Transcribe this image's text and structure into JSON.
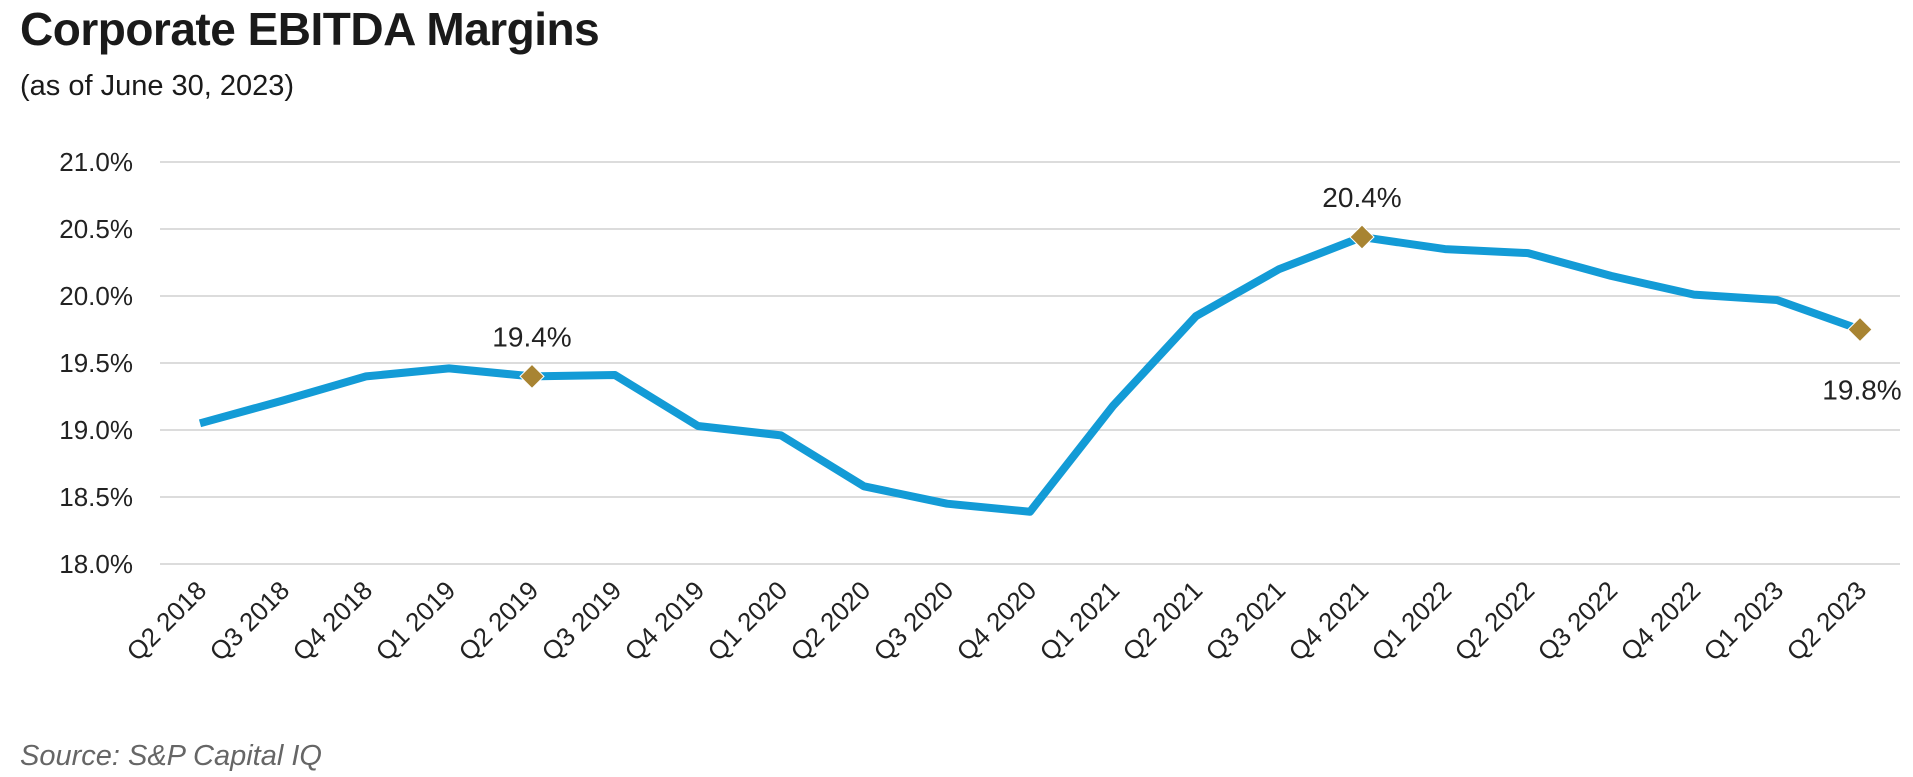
{
  "chart_data": {
    "type": "line",
    "title": "Corporate EBITDA Margins",
    "subtitle": "(as of June 30, 2023)",
    "source": "Source: S&P Capital IQ",
    "xlabel": "",
    "ylabel": "",
    "ylim": [
      18.0,
      21.0
    ],
    "yticks": [
      {
        "value": 18.0,
        "label": "18.0%"
      },
      {
        "value": 18.5,
        "label": "18.5%"
      },
      {
        "value": 19.0,
        "label": "19.0%"
      },
      {
        "value": 19.5,
        "label": "19.5%"
      },
      {
        "value": 20.0,
        "label": "20.0%"
      },
      {
        "value": 20.5,
        "label": "20.5%"
      },
      {
        "value": 21.0,
        "label": "21.0%"
      }
    ],
    "grid": true,
    "legend": "none",
    "categories": [
      "Q2 2018",
      "Q3 2018",
      "Q4 2018",
      "Q1 2019",
      "Q2 2019",
      "Q3 2019",
      "Q4 2019",
      "Q1 2020",
      "Q2 2020",
      "Q3 2020",
      "Q4 2020",
      "Q1 2021",
      "Q2 2021",
      "Q3 2021",
      "Q4 2021",
      "Q1 2022",
      "Q2 2022",
      "Q3 2022",
      "Q4 2022",
      "Q1 2023",
      "Q2 2023"
    ],
    "series": [
      {
        "values": [
          19.05,
          19.22,
          19.4,
          19.46,
          19.4,
          19.41,
          19.03,
          18.96,
          18.58,
          18.45,
          18.39,
          19.18,
          19.85,
          20.2,
          20.44,
          20.35,
          20.32,
          20.15,
          20.01,
          19.97,
          19.75
        ],
        "color": "#139BD6"
      }
    ],
    "markers": [
      {
        "index": 4,
        "label": "19.4%",
        "position": "above"
      },
      {
        "index": 14,
        "label": "20.4%",
        "position": "above"
      },
      {
        "index": 20,
        "label": "19.8%",
        "position": "below"
      }
    ],
    "marker_color": "#A88432"
  }
}
